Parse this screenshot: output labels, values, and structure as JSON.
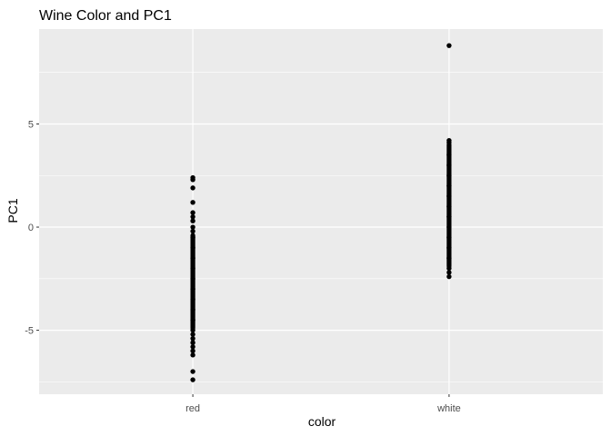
{
  "chart_data": {
    "type": "scatter",
    "title": "Wine Color and PC1",
    "xlabel": "color",
    "ylabel": "PC1",
    "categories": [
      "red",
      "white"
    ],
    "ylim": [
      -8.1,
      9.6
    ],
    "y_ticks": [
      -5,
      0,
      5
    ],
    "y_tick_labels": [
      "-5",
      "0",
      "5"
    ],
    "grid": true,
    "colors": {
      "panel": "#EBEBEB",
      "grid": "#FFFFFF",
      "point": "#000000",
      "tick_text": "#4D4D4D"
    },
    "series": [
      {
        "category": "red",
        "dense_ranges": [
          [
            -4.9,
            -0.4
          ]
        ],
        "values": [
          2.4,
          2.3,
          1.9,
          1.2,
          0.7,
          0.5,
          0.3,
          0.0,
          -0.2,
          -0.5,
          -1.0,
          -1.5,
          -2.0,
          -2.5,
          -3.0,
          -3.5,
          -4.0,
          -4.5,
          -5.0,
          -5.2,
          -5.4,
          -5.6,
          -5.8,
          -6.0,
          -6.2,
          -7.0,
          -7.4
        ]
      },
      {
        "category": "white",
        "dense_ranges": [
          [
            -1.9,
            4.0
          ]
        ],
        "values": [
          8.8,
          4.2,
          4.1,
          3.5,
          3.0,
          2.5,
          2.0,
          1.5,
          1.0,
          0.5,
          0.0,
          -0.5,
          -1.0,
          -1.5,
          -2.0,
          -2.2,
          -2.4
        ]
      }
    ]
  }
}
